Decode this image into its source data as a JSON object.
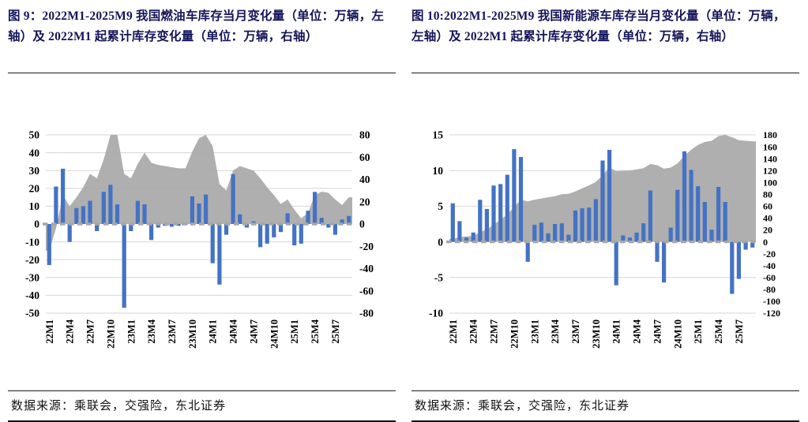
{
  "page": {
    "background": "#ffffff"
  },
  "figures": [
    {
      "id": "figure-9",
      "title": "图 9：2022M1-2025M9 我国燃油车库存当月变化量（单位：万辆，左轴）及 2022M1 起累计库存变化量（单位：万辆，右轴）",
      "source": "数据来源：乘联会，交强险，东北证券",
      "chart_data": {
        "type": "bar",
        "subtype": "combo bar + cumulative area, dual axis",
        "categories": [
          "22M1",
          "22M2",
          "22M3",
          "22M4",
          "22M5",
          "22M6",
          "22M7",
          "22M8",
          "22M9",
          "22M10",
          "22M11",
          "22M12",
          "23M1",
          "23M2",
          "23M3",
          "23M4",
          "23M5",
          "23M6",
          "23M7",
          "23M8",
          "23M9",
          "23M10",
          "23M11",
          "23M12",
          "24M1",
          "24M2",
          "24M3",
          "24M4",
          "24M5",
          "24M6",
          "24M7",
          "24M8",
          "24M9",
          "24M10",
          "24M11",
          "24M12",
          "25M1",
          "25M2",
          "25M3",
          "25M4",
          "25M5",
          "25M6",
          "25M7",
          "25M8",
          "25M9"
        ],
        "x_tick_labels": [
          "22M1",
          "22M4",
          "22M7",
          "22M10",
          "23M1",
          "23M4",
          "23M7",
          "23M10",
          "24M1",
          "24M4",
          "24M7",
          "24M10",
          "25M1",
          "25M4",
          "25M7"
        ],
        "series": [
          {
            "name": "燃油车库存当月变化量（万辆，左轴）",
            "type": "bar",
            "axis": "left",
            "color": "#4472C4",
            "values": [
              -23,
              21,
              31,
              -10,
              9,
              10,
              13,
              -4,
              18,
              22,
              11,
              -47,
              -4,
              13,
              11,
              -9,
              -2,
              -1,
              -1.5,
              -1,
              -0.5,
              15.5,
              11.5,
              16.5,
              -22,
              -34,
              -6,
              28,
              5.5,
              -2,
              1.5,
              -13,
              -11,
              -7.5,
              -4.5,
              6,
              -12,
              -11,
              7.5,
              18,
              3.5,
              -2,
              -6,
              2.5,
              4.5
            ]
          },
          {
            "name": "2022M1 起累计库存变化量（万辆，右轴）",
            "type": "area",
            "axis": "right",
            "color": "#A8A8A8",
            "values": [
              -24,
              -4,
              26,
              16,
              24,
              33,
              45,
              41,
              58,
              80,
              92,
              45,
              41,
              54,
              64,
              55,
              53,
              52,
              51,
              50,
              50,
              65,
              77,
              92,
              70,
              36,
              30,
              48,
              52,
              50,
              48,
              41,
              33,
              26,
              18,
              22,
              13,
              5,
              10,
              26,
              29,
              28,
              22,
              17,
              24
            ]
          }
        ],
        "left_axis": {
          "min": -50,
          "max": 50,
          "ticks": [
            50,
            40,
            30,
            20,
            10,
            0,
            -10,
            -20,
            -30,
            -40,
            -50
          ]
        },
        "right_axis": {
          "min": -80,
          "max": 80,
          "ticks": [
            80,
            60,
            40,
            20,
            0,
            -20,
            -40,
            -60,
            -80
          ]
        },
        "grid": "horizontal at left-axis ticks",
        "zero_line": "dashed gray",
        "legend": "none"
      }
    },
    {
      "id": "figure-10",
      "title": "图 10:2022M1-2025M9 我国新能源车库存当月变化量（单位：万辆，左轴）及 2022M1 起累计库存变化量（单位：万辆，右轴）",
      "source": "数据来源：乘联会，交强险，东北证券",
      "chart_data": {
        "type": "bar",
        "subtype": "combo bar + cumulative area, dual axis",
        "categories": [
          "22M1",
          "22M2",
          "22M3",
          "22M4",
          "22M5",
          "22M6",
          "22M7",
          "22M8",
          "22M9",
          "22M10",
          "22M11",
          "22M12",
          "23M1",
          "23M2",
          "23M3",
          "23M4",
          "23M5",
          "23M6",
          "23M7",
          "23M8",
          "23M9",
          "23M10",
          "23M11",
          "23M12",
          "24M1",
          "24M2",
          "24M3",
          "24M4",
          "24M5",
          "24M6",
          "24M7",
          "24M8",
          "24M9",
          "24M10",
          "24M11",
          "24M12",
          "25M1",
          "25M2",
          "25M3",
          "25M4",
          "25M5",
          "25M6",
          "25M7",
          "25M8",
          "25M9"
        ],
        "x_tick_labels": [
          "22M1",
          "22M4",
          "22M7",
          "22M10",
          "23M1",
          "23M4",
          "23M7",
          "23M10",
          "24M1",
          "24M4",
          "24M7",
          "24M10",
          "25M1",
          "25M4",
          "25M7"
        ],
        "series": [
          {
            "name": "新能源车库存当月变化量（万辆，左轴）",
            "type": "bar",
            "axis": "left",
            "color": "#4472C4",
            "values": [
              5.4,
              2.9,
              0.6,
              1.3,
              5.9,
              4.6,
              7.9,
              8.1,
              9.4,
              13.0,
              11.9,
              -2.8,
              2.4,
              2.7,
              1.2,
              2.5,
              2.6,
              1.0,
              4.4,
              4.7,
              4.8,
              6.0,
              11.4,
              12.9,
              -6.1,
              0.9,
              0.6,
              1.3,
              2.6,
              7.2,
              -2.8,
              -5.7,
              2.0,
              7.3,
              12.7,
              10.1,
              7.8,
              5.6,
              1.7,
              7.7,
              5.6,
              -7.3,
              -5.2,
              -1.1,
              -0.8
            ]
          },
          {
            "name": "2022M1 起累计库存变化量（万辆，右轴）",
            "type": "area",
            "axis": "right",
            "color": "#A8A8A8",
            "values": [
              5,
              8,
              9,
              10,
              16,
              21,
              29,
              37,
              46,
              59,
              71,
              68,
              71,
              73,
              75,
              77,
              80,
              81,
              85,
              90,
              95,
              101,
              112,
              125,
              119,
              120,
              120,
              122,
              124,
              131,
              129,
              123,
              125,
              132,
              145,
              155,
              163,
              168,
              170,
              178,
              183,
              176,
              171,
              170,
              169
            ]
          }
        ],
        "left_axis": {
          "min": -10,
          "max": 15,
          "ticks": [
            15,
            10,
            5,
            0,
            -5,
            -10
          ]
        },
        "right_axis": {
          "min": -120,
          "max": 180,
          "ticks": [
            180,
            160,
            140,
            120,
            100,
            80,
            60,
            40,
            20,
            0,
            -20,
            -40,
            -60,
            -80,
            -100,
            -120
          ]
        },
        "grid": "horizontal at left-axis ticks",
        "zero_line": "dashed gray",
        "legend": "none"
      }
    }
  ]
}
